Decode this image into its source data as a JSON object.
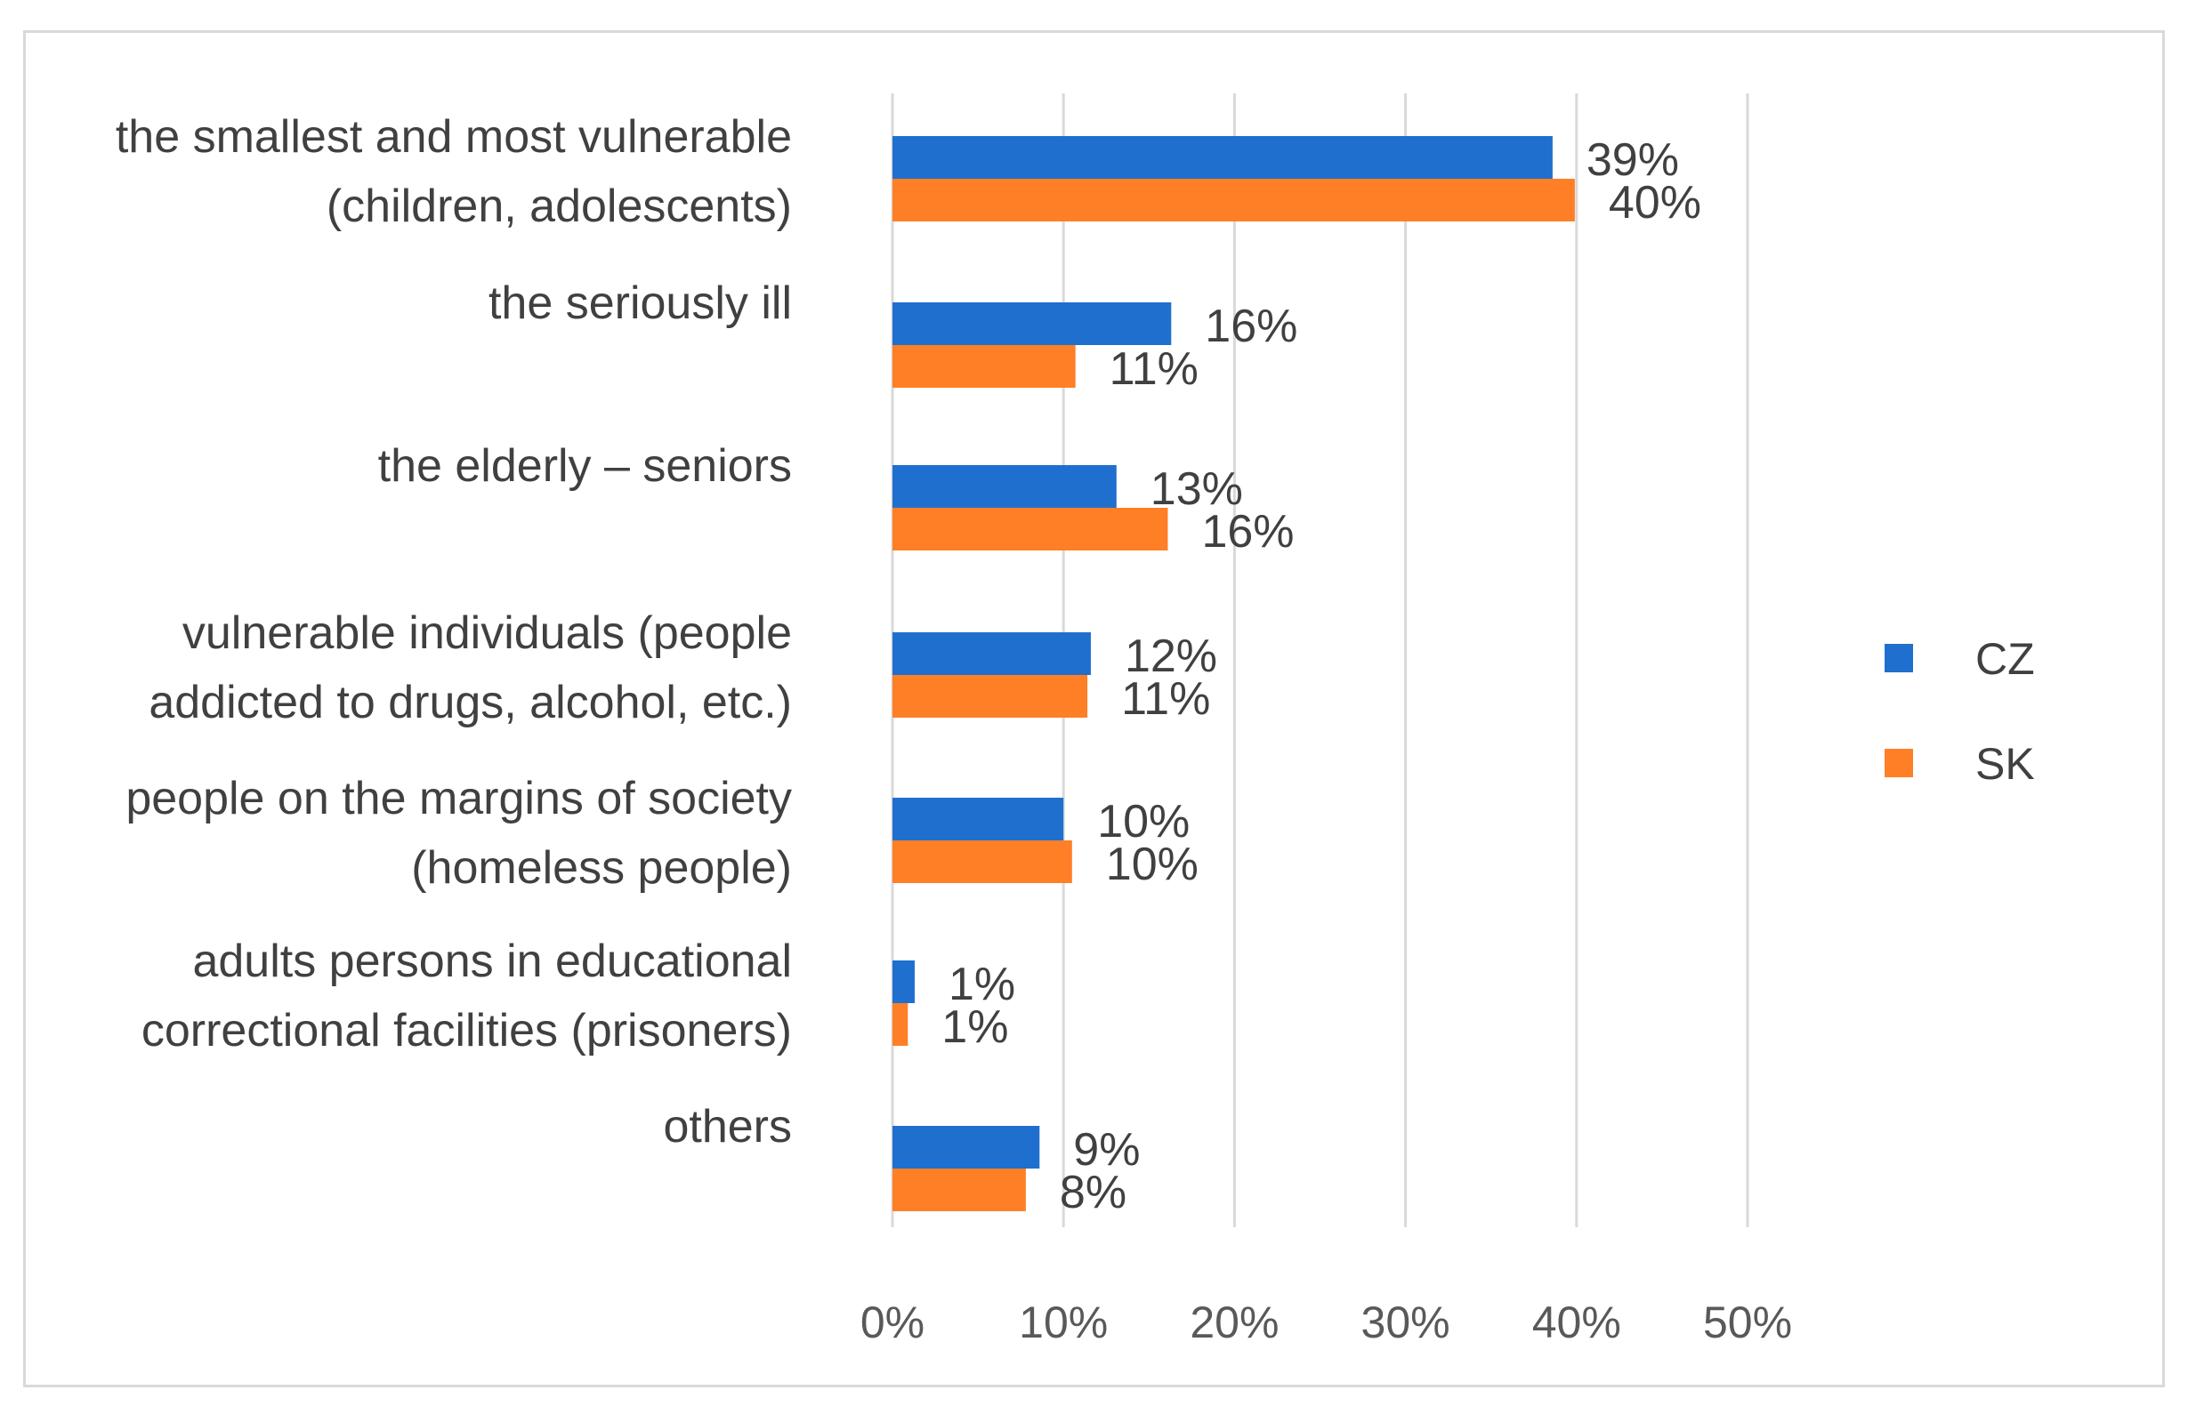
{
  "chart_data": {
    "type": "bar",
    "orientation": "horizontal",
    "title": "",
    "xlabel": "",
    "ylabel": "",
    "xlim": [
      0,
      50
    ],
    "ticks": [
      "0%",
      "10%",
      "20%",
      "30%",
      "40%",
      "50%"
    ],
    "tick_values": [
      0,
      10,
      20,
      30,
      40,
      50
    ],
    "grid": true,
    "legend_position": "right",
    "categories": [
      [
        "the smallest and most vulnerable",
        "(children, adolescents)"
      ],
      [
        "the seriously ill"
      ],
      [
        "the elderly – seniors"
      ],
      [
        "vulnerable individuals (people",
        "addicted to drugs, alcohol, etc.)"
      ],
      [
        "people on the margins of society",
        "(homeless people)"
      ],
      [
        "adults persons in educational",
        "correctional facilities (prisoners)"
      ],
      [
        "others"
      ]
    ],
    "series": [
      {
        "name": "CZ",
        "color": "#1f6fcf",
        "values": [
          38.6,
          16.3,
          13.1,
          11.6,
          10.0,
          1.3,
          8.6
        ],
        "labels": [
          "39%",
          "16%",
          "13%",
          "12%",
          "10%",
          "1%",
          "9%"
        ]
      },
      {
        "name": "SK",
        "color": "#ff7f27",
        "values": [
          39.9,
          10.7,
          16.1,
          11.4,
          10.5,
          0.9,
          7.8
        ],
        "labels": [
          "40%",
          "11%",
          "16%",
          "11%",
          "10%",
          "1%",
          "8%"
        ]
      }
    ]
  }
}
